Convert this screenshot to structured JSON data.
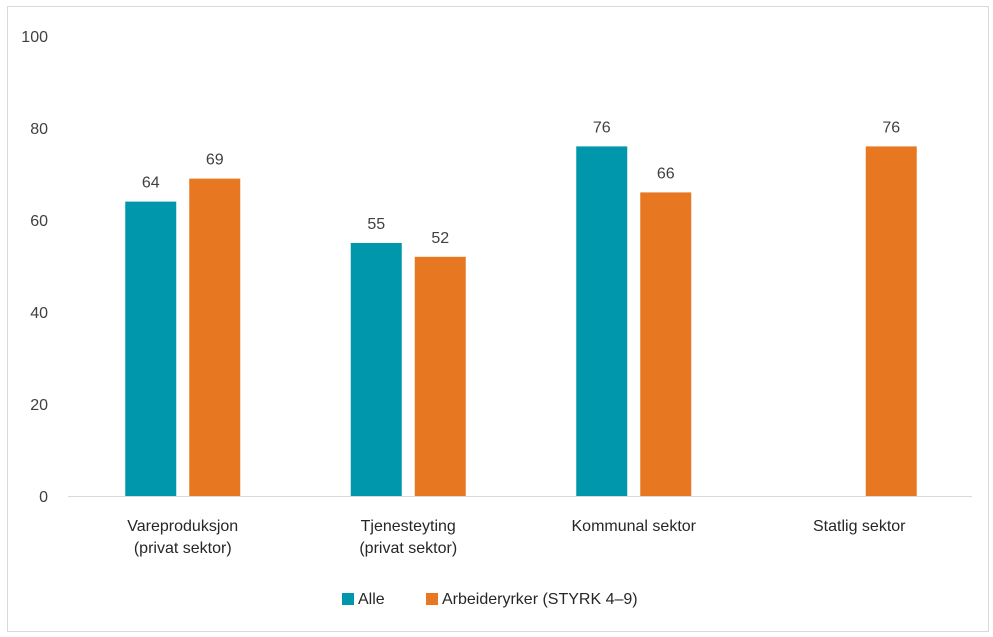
{
  "chart_data": {
    "type": "bar",
    "categories": [
      [
        "Vareproduksjon",
        "(privat sektor)"
      ],
      [
        "Tjenesteyting",
        "(privat sektor)"
      ],
      [
        "Kommunal sektor"
      ],
      [
        "Statlig sektor"
      ]
    ],
    "series": [
      {
        "name": "Alle",
        "color": "#0097AC",
        "values": [
          64,
          55,
          76,
          null
        ]
      },
      {
        "name": "Arbeideryrker (STYRK 4–9)",
        "color": "#E87722",
        "values": [
          69,
          52,
          66,
          76
        ]
      }
    ],
    "ylim": [
      0,
      100
    ],
    "yticks": [
      0,
      20,
      40,
      60,
      80,
      100
    ],
    "grid": false,
    "legend": "bottom-center",
    "title": "",
    "xlabel": "",
    "ylabel": ""
  }
}
